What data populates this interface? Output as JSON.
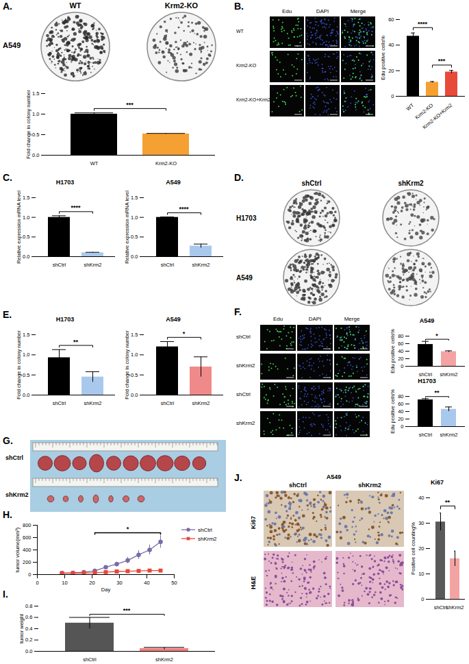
{
  "chart_data": [
    {
      "type": "bar",
      "categories": [
        "WT",
        "Krm2-KO"
      ],
      "values": [
        1.0,
        0.52
      ],
      "errors": [
        0.03,
        0.01
      ],
      "colors": [
        "#000000",
        "#f5a033"
      ],
      "ylabel": "Fold change in colony number",
      "ylim": [
        0,
        1.5
      ],
      "yticks": [
        {
          "value": 0,
          "label": "0.0"
        },
        0.5,
        {
          "value": 1,
          "label": "1.0"
        },
        1.5
      ],
      "significance": [
        {
          "from": 0,
          "to": 1,
          "label": "***"
        }
      ]
    },
    {
      "type": "bar",
      "categories": [
        "WT",
        "Krm2-KO",
        "Krm2-KO+Krm2"
      ],
      "values": [
        47,
        11,
        19
      ],
      "errors": [
        2.5,
        0.5,
        1.2
      ],
      "colors": [
        "#000000",
        "#f5a033",
        "#e84a3a"
      ],
      "ylabel": "Edu positive cells%",
      "ylim": [
        0,
        60
      ],
      "yticks": [
        0,
        20,
        40,
        60
      ],
      "significance": [
        {
          "from": 0,
          "to": 1,
          "label": "****"
        },
        {
          "from": 1,
          "to": 2,
          "label": "***"
        }
      ]
    },
    {
      "type": "bar",
      "panel": "C.",
      "title": "H1703",
      "categories": [
        "shCtrl",
        "shKrm2"
      ],
      "values": [
        1.0,
        0.1
      ],
      "errors": [
        0.04,
        0.01
      ],
      "colors": [
        "#000000",
        "#a9c9ec"
      ],
      "ylabel": "Relative expression mRNA level",
      "ylim": [
        0,
        1.5
      ],
      "yticks": [
        {
          "value": 0,
          "label": "0.0"
        },
        0.5,
        {
          "value": 1,
          "label": "1.0"
        },
        1.5
      ],
      "significance": [
        {
          "from": 0,
          "to": 1,
          "label": "****"
        }
      ]
    },
    {
      "type": "bar",
      "title": "A549",
      "categories": [
        "shCtrl",
        "shKrm2"
      ],
      "values": [
        1.0,
        0.27
      ],
      "errors": [
        0.01,
        0.05
      ],
      "colors": [
        "#000000",
        "#a9c9ec"
      ],
      "ylabel": "Relative expression mRNA level",
      "ylim": [
        0,
        1.5
      ],
      "yticks": [
        {
          "value": 0,
          "label": "0.0"
        },
        0.5,
        {
          "value": 1,
          "label": "1.0"
        },
        1.5
      ],
      "significance": [
        {
          "from": 0,
          "to": 1,
          "label": "****"
        }
      ]
    },
    {
      "type": "bar",
      "panel": "E.",
      "title": "H1703",
      "categories": [
        "shCtrl",
        "shKrm2"
      ],
      "values": [
        0.93,
        0.45
      ],
      "errors": [
        0.2,
        0.13
      ],
      "colors": [
        "#000000",
        "#a9c9ec"
      ],
      "ylabel": "Fold change in colony number",
      "ylim": [
        0,
        1.5
      ],
      "yticks": [
        {
          "value": 0,
          "label": "0.0"
        },
        0.5,
        {
          "value": 1,
          "label": "1.0"
        },
        1.5
      ],
      "significance": [
        {
          "from": 0,
          "to": 1,
          "label": "**"
        }
      ]
    },
    {
      "type": "bar",
      "title": "A549",
      "categories": [
        "shCtrl",
        "shKrm2"
      ],
      "values": [
        1.2,
        0.7
      ],
      "errors": [
        0.13,
        0.25
      ],
      "colors": [
        "#000000",
        "#f08a8a"
      ],
      "ylabel": "Fold change in colony number",
      "ylim": [
        0,
        1.5
      ],
      "yticks": [
        {
          "value": 0,
          "label": "0.0"
        },
        0.5,
        {
          "value": 1,
          "label": "1.0"
        },
        1.5
      ],
      "significance": [
        {
          "from": 0,
          "to": 1,
          "label": "*"
        }
      ]
    },
    {
      "type": "bar",
      "title": "A549",
      "categories": [
        "shCtrl",
        "shKrm2"
      ],
      "values": [
        58,
        39
      ],
      "errors": [
        8,
        2
      ],
      "colors": [
        "#000000",
        "#f4a3a3"
      ],
      "ylabel": "Edu positive cells%",
      "ylim": [
        0,
        80
      ],
      "yticks": [
        0,
        20,
        40,
        60,
        80
      ],
      "significance": [
        {
          "from": 0,
          "to": 1,
          "label": "*"
        }
      ]
    },
    {
      "type": "bar",
      "title": "H1703",
      "categories": [
        "shCtrl",
        "shKrm2"
      ],
      "values": [
        71,
        46
      ],
      "errors": [
        3,
        6
      ],
      "colors": [
        "#000000",
        "#a9c9ec"
      ],
      "ylabel": "Edu positive cells%",
      "ylim": [
        0,
        80
      ],
      "yticks": [
        0,
        20,
        40,
        60,
        80
      ],
      "significance": [
        {
          "from": 0,
          "to": 1,
          "label": "**"
        }
      ]
    },
    {
      "type": "line",
      "panel": "H.",
      "xlabel": "Day",
      "ylabel": "tumor volume(mm³)",
      "x": [
        9,
        13,
        17,
        21,
        25,
        29,
        33,
        37,
        41,
        45
      ],
      "xlim": [
        0,
        50
      ],
      "xticks": [
        0,
        10,
        20,
        30,
        40,
        50
      ],
      "ylim": [
        0,
        800
      ],
      "yticks": [
        0,
        200,
        400,
        600,
        800
      ],
      "legend": "top-right",
      "series": [
        {
          "name": "shCtrl",
          "color": "#7a6aa8",
          "marker": "circle",
          "values": [
            25,
            28,
            38,
            60,
            120,
            170,
            230,
            320,
            400,
            530
          ],
          "errors": [
            5,
            5,
            8,
            15,
            25,
            35,
            50,
            70,
            80,
            100
          ]
        },
        {
          "name": "shKrm2",
          "color": "#e8473a",
          "marker": "square",
          "values": [
            20,
            22,
            25,
            30,
            40,
            50,
            55,
            60,
            65,
            65
          ],
          "errors": [
            2,
            2,
            3,
            4,
            5,
            6,
            6,
            7,
            8,
            8
          ]
        }
      ],
      "significance": [
        {
          "from": 21,
          "to": 45,
          "label": "*"
        }
      ]
    },
    {
      "type": "bar",
      "panel": "I.",
      "categories": [
        "shCtrl",
        "shKrm2"
      ],
      "values": [
        0.5,
        0.05
      ],
      "errors": [
        0.1,
        0.02
      ],
      "colors": [
        "#555555",
        "#f08080"
      ],
      "ylabel": "tumor weight",
      "ylim": [
        0,
        0.8
      ],
      "yticks": [
        {
          "value": 0,
          "label": "0.0"
        },
        0.2,
        0.4,
        0.6,
        0.8
      ],
      "significance": [
        {
          "from": 0,
          "to": 1,
          "label": "***"
        }
      ]
    },
    {
      "type": "bar",
      "title": "Ki67",
      "categories": [
        "shCtrl",
        "shKrm2"
      ],
      "values": [
        30.5,
        16
      ],
      "errors": [
        3.5,
        3
      ],
      "colors": [
        "#595959",
        "#f4a3a3"
      ],
      "ylabel": "Positive cell counting%",
      "ylim": [
        0,
        40
      ],
      "yticks": [
        0,
        10,
        20,
        30,
        40
      ],
      "significance": [
        {
          "from": 0,
          "to": 1,
          "label": "**"
        }
      ]
    }
  ],
  "images": [
    {
      "panel": "A.",
      "cell_line": "A549",
      "columns": [
        "WT",
        "Krm2-KO"
      ]
    },
    {
      "panel": "B.",
      "columns": [
        "Edu",
        "DAPI",
        "Merge"
      ],
      "rows": [
        "WT",
        "Krm2-KO",
        "Krm2-KO+Krm2"
      ]
    },
    {
      "panel": "D.",
      "columns": [
        "shCtrl",
        "shKrm2"
      ],
      "rows": [
        "H1703",
        "A549"
      ]
    },
    {
      "panel": "F.",
      "columns": [
        "Edu",
        "DAPI",
        "Merge"
      ],
      "rows": [
        "shCtrl",
        "shKrm2",
        "shCtrl",
        "shKrm2"
      ]
    },
    {
      "panel": "G.",
      "rows": [
        "shCtrl",
        "shKrm2"
      ]
    },
    {
      "panel": "J.",
      "cell_line": "A549",
      "columns": [
        "shCtrl",
        "shKrm2"
      ],
      "rows": [
        "Ki67",
        "H&E"
      ]
    }
  ]
}
